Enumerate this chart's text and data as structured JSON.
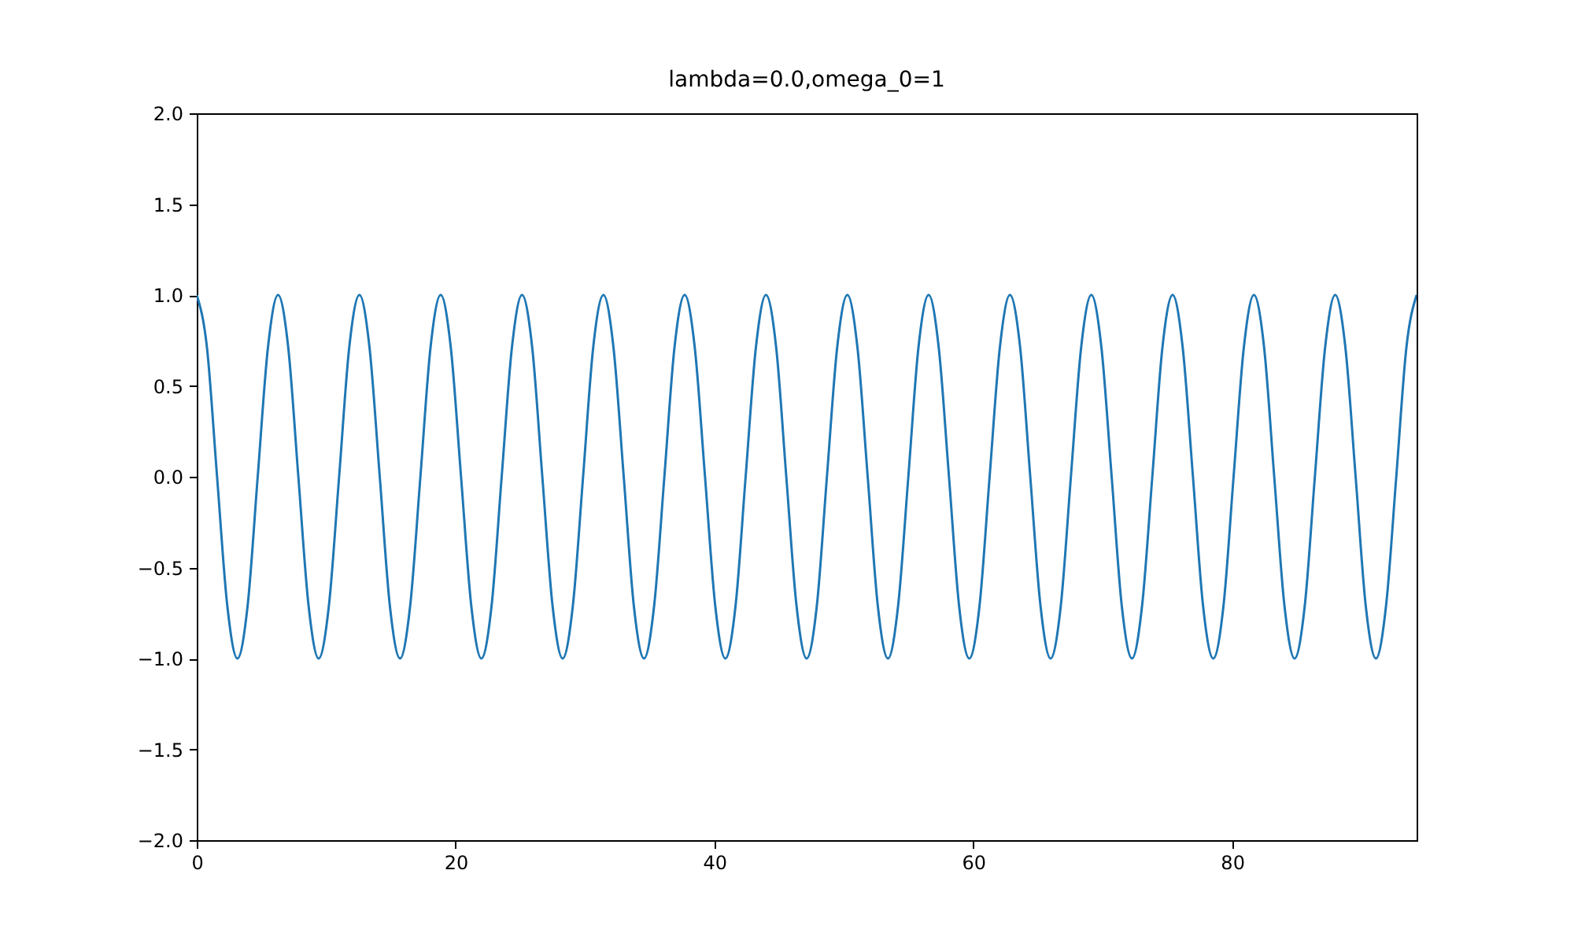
{
  "chart_data": {
    "type": "line",
    "title": "lambda=0.0,omega_0=1",
    "x": [
      0,
      0.79,
      1.57,
      2.36,
      3.14,
      3.93,
      4.71,
      5.5,
      6.28,
      7.07,
      7.85,
      8.64,
      9.42,
      10.21,
      11.0,
      11.78,
      12.57,
      13.35,
      14.14,
      14.92,
      15.71,
      16.49,
      17.28,
      18.06,
      18.85,
      19.63,
      20.42,
      21.21,
      21.99,
      22.78,
      23.56,
      24.35,
      25.13,
      25.92,
      26.7,
      27.49,
      28.27,
      29.06,
      29.85,
      30.63,
      31.42,
      32.2,
      32.99,
      33.77,
      34.56,
      35.34,
      36.13,
      36.91,
      37.7,
      38.48,
      39.27,
      40.06,
      40.84,
      41.63,
      42.41,
      43.2,
      43.98,
      44.77,
      45.55,
      46.34,
      47.12,
      47.91,
      48.69,
      49.48,
      50.27,
      51.05,
      51.84,
      52.62,
      53.41,
      54.19,
      54.98,
      55.76,
      56.55,
      57.33,
      58.12,
      58.9,
      59.69,
      60.48,
      61.26,
      62.05,
      62.83,
      63.62,
      64.4,
      65.19,
      65.97,
      66.76,
      67.54,
      68.33,
      69.12,
      69.9,
      70.69,
      71.47,
      72.26,
      73.04,
      73.83,
      74.61,
      75.4,
      76.18,
      76.97,
      77.75,
      78.54,
      79.33,
      80.11,
      80.9,
      81.68,
      82.47,
      83.25,
      84.04,
      84.82,
      85.61,
      86.39,
      87.18,
      87.96,
      88.75,
      89.54,
      90.32,
      91.11,
      91.89,
      92.68,
      93.46,
      94.25
    ],
    "series": [
      {
        "color": "#1f77b4",
        "values": [
          1,
          0.71,
          0,
          -0.71,
          -1,
          -0.71,
          0,
          0.71,
          1,
          0.71,
          0,
          -0.71,
          -1,
          -0.71,
          0,
          0.71,
          1,
          0.71,
          0,
          -0.71,
          -1,
          -0.71,
          0,
          0.71,
          1,
          0.71,
          0,
          -0.71,
          -1,
          -0.71,
          0,
          0.71,
          1,
          0.71,
          0,
          -0.71,
          -1,
          -0.71,
          0,
          0.71,
          1,
          0.71,
          0,
          -0.71,
          -1,
          -0.71,
          0,
          0.71,
          1,
          0.71,
          0,
          -0.71,
          -1,
          -0.71,
          0,
          0.71,
          1,
          0.71,
          0,
          -0.71,
          -1,
          -0.71,
          0,
          0.71,
          1,
          0.71,
          0,
          -0.71,
          -1,
          -0.71,
          0,
          0.71,
          1,
          0.71,
          0,
          -0.71,
          -1,
          -0.71,
          0,
          0.71,
          1,
          0.71,
          0,
          -0.71,
          -1,
          -0.71,
          0,
          0.71,
          1,
          0.71,
          0,
          -0.71,
          -1,
          -0.71,
          0,
          0.71,
          1,
          0.71,
          0,
          -0.71,
          -1,
          -0.71,
          0,
          0.71,
          1,
          0.71,
          0,
          -0.71,
          -1,
          -0.71,
          0,
          0.71,
          1,
          0.71,
          0,
          -0.71,
          -1,
          -0.71,
          0,
          0.71,
          1
        ]
      }
    ],
    "xlim": [
      0,
      94.25
    ],
    "xticks": [
      0,
      20,
      40,
      60,
      80
    ],
    "ylim": [
      -2,
      2
    ],
    "yticks": [
      {
        "value": -2,
        "label": "−2.0"
      },
      {
        "value": -1.5,
        "label": "−1.5"
      },
      {
        "value": -1,
        "label": "−1.0"
      },
      {
        "value": -0.5,
        "label": "−0.5"
      },
      {
        "value": 0,
        "label": "0.0"
      },
      {
        "value": 0.5,
        "label": "0.5"
      },
      {
        "value": 1,
        "label": "1.0"
      },
      {
        "value": 1.5,
        "label": "1.5"
      },
      {
        "value": 2,
        "label": "2.0"
      }
    ],
    "grid": false
  }
}
